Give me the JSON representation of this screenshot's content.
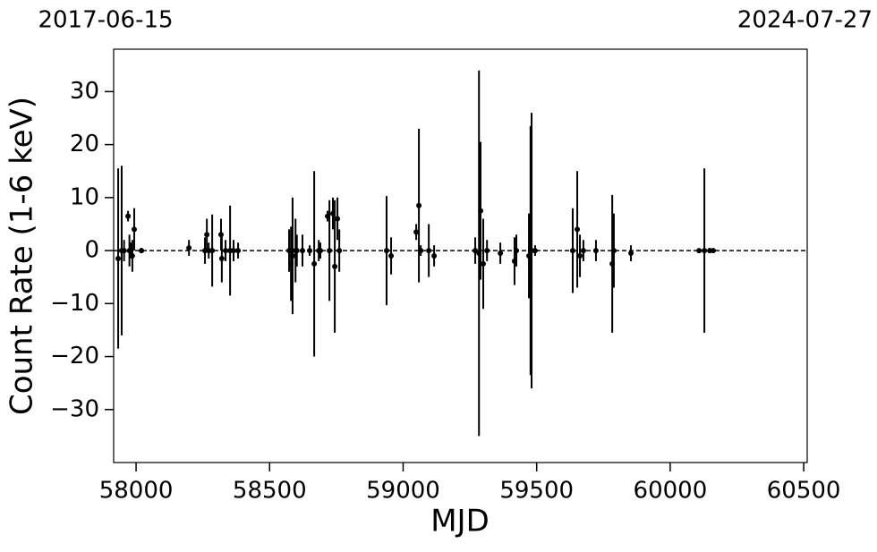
{
  "chart_data": {
    "type": "errorbar",
    "top_labels": [
      "2017-06-15",
      "2024-07-27"
    ],
    "xlabel": "MJD",
    "ylabel": "Count Rate (1-6 keV)",
    "xlim": [
      57916,
      60513
    ],
    "ylim": [
      -40,
      38
    ],
    "xticks": [
      58000,
      58500,
      59000,
      59500,
      60000,
      60500
    ],
    "yticks": [
      {
        "value": -30,
        "label": "−30"
      },
      {
        "value": -20,
        "label": "−20"
      },
      {
        "value": -10,
        "label": "−10"
      },
      0,
      10,
      20,
      30
    ],
    "hline": 0,
    "color": "#000000",
    "x": [
      57933,
      57946,
      57955,
      57970,
      57975,
      57980,
      57986,
      57993,
      58020,
      58198,
      58258,
      58265,
      58272,
      58285,
      58318,
      58321,
      58335,
      58352,
      58365,
      58382,
      58573,
      58580,
      58586,
      58597,
      58602,
      58623,
      58650,
      58667,
      58684,
      58690,
      58717,
      58724,
      58737,
      58744,
      58754,
      58761,
      58938,
      58955,
      59049,
      59059,
      59066,
      59096,
      59116,
      59270,
      59284,
      59290,
      59300,
      59314,
      59364,
      59417,
      59424,
      59471,
      59477,
      59481,
      59494,
      59635,
      59652,
      59662,
      59675,
      59722,
      59783,
      59789,
      59853,
      60108,
      60128,
      60148,
      60161
    ],
    "values": [
      -1.5,
      0,
      0,
      6.5,
      0,
      0,
      -1,
      4,
      0,
      0.5,
      0,
      3,
      0,
      0,
      3,
      -1.5,
      0,
      0,
      0,
      0,
      0,
      -2.5,
      -1,
      0,
      0,
      0,
      0,
      -2.5,
      0,
      0,
      6.5,
      0,
      7,
      -3,
      6,
      0,
      0,
      -1,
      3.5,
      8.5,
      0,
      0,
      -1,
      0,
      -0.5,
      7.5,
      -2.5,
      0,
      -0.5,
      -2,
      0,
      -1,
      0,
      0,
      0,
      0,
      4,
      -1,
      0,
      0,
      -2.5,
      0,
      -0.5,
      0,
      0,
      0,
      0
    ],
    "errors": [
      17,
      16,
      2,
      1,
      3,
      1.5,
      3,
      4,
      0.5,
      1.5,
      2.5,
      3,
      1.5,
      6.8,
      3,
      4.5,
      2,
      8.5,
      2,
      1.5,
      4,
      7,
      11,
      6,
      3,
      3,
      1,
      17.5,
      2,
      1.5,
      1,
      9.5,
      3,
      12.5,
      4,
      4,
      10.3,
      3.5,
      1.5,
      14.5,
      1,
      5,
      2,
      2.5,
      34.5,
      13,
      8.5,
      2,
      2,
      4.5,
      3,
      8,
      23.5,
      26,
      1,
      8,
      11,
      4,
      2,
      2,
      13,
      7,
      1.5,
      0.3,
      15.5,
      0.5,
      0.3
    ]
  }
}
